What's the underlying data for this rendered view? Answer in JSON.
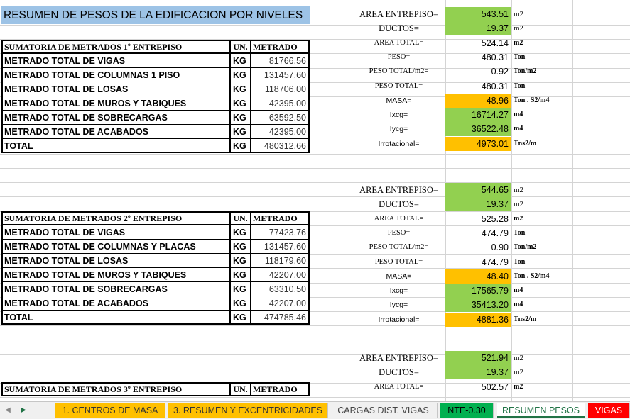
{
  "title": "RESUMEN DE PESOS DE LA EDIFICACION POR NIVELES",
  "header_labels": {
    "un": "UN.",
    "metrado": "METRADO"
  },
  "blocks": [
    {
      "header": "SUMATORIA  DE METRADOS 1º ENTREPISO",
      "rows": [
        {
          "label": "METRADO TOTAL DE VIGAS",
          "unit": "KG",
          "value": "81766.56"
        },
        {
          "label": "METRADO TOTAL DE COLUMNAS  1 PISO",
          "unit": "KG",
          "value": "131457.60"
        },
        {
          "label": "METRADO TOTAL DE LOSAS",
          "unit": "KG",
          "value": "118706.00"
        },
        {
          "label": "METRADO TOTAL DE MUROS Y TABIQUES",
          "unit": "KG",
          "value": "42395.00"
        },
        {
          "label": "METRADO TOTAL DE SOBRECARGAS",
          "unit": "KG",
          "value": "63592.50"
        },
        {
          "label": "METRADO TOTAL DE ACABADOS",
          "unit": "KG",
          "value": "42395.00"
        },
        {
          "label": "TOTAL",
          "unit": "KG",
          "value": "480312.66"
        }
      ]
    },
    {
      "header": "SUMATORIA  DE METRADOS 2º ENTREPISO",
      "rows": [
        {
          "label": "METRADO TOTAL DE VIGAS",
          "unit": "KG",
          "value": "77423.76"
        },
        {
          "label": "METRADO TOTAL DE COLUMNAS Y PLACAS",
          "unit": "KG",
          "value": "131457.60"
        },
        {
          "label": "METRADO TOTAL DE LOSAS",
          "unit": "KG",
          "value": "118179.60"
        },
        {
          "label": "METRADO TOTAL DE MUROS Y TABIQUES",
          "unit": "KG",
          "value": "42207.00"
        },
        {
          "label": "METRADO TOTAL DE SOBRECARGAS",
          "unit": "KG",
          "value": "63310.50"
        },
        {
          "label": "METRADO TOTAL DE ACABADOS",
          "unit": "KG",
          "value": "42207.00"
        },
        {
          "label": "TOTAL",
          "unit": "KG",
          "value": "474785.46"
        }
      ]
    },
    {
      "header": "SUMATORIA  DE METRADOS 3º ENTREPISO",
      "rows": []
    }
  ],
  "props": [
    [
      {
        "label": "AREA ENTREPISO=",
        "value": "543.51",
        "unit": "m2",
        "fill": "green",
        "style": "big"
      },
      {
        "label": "DUCTOS=",
        "value": "19.37",
        "unit": "m2",
        "fill": "green",
        "style": "big"
      },
      {
        "label": "AREA TOTAL=",
        "value": "524.14",
        "unit": "m2",
        "fill": "",
        "style": "small"
      },
      {
        "label": "PESO=",
        "value": "480.31",
        "unit": "Ton",
        "fill": "",
        "style": "small"
      },
      {
        "label": "PESO TOTAL/m2=",
        "value": "0.92",
        "unit": "Ton/m2",
        "fill": "",
        "style": "small"
      },
      {
        "label": "PESO TOTAL=",
        "value": "480.31",
        "unit": "Ton",
        "fill": "",
        "style": "small"
      },
      {
        "label": "MASA=",
        "value": "48.96",
        "unit": "Ton . S2/m4",
        "fill": "orange",
        "style": "sans"
      },
      {
        "label": "Ixcg=",
        "value": "16714.27",
        "unit": "m4",
        "fill": "green",
        "style": "sans"
      },
      {
        "label": "Iycg=",
        "value": "36522.48",
        "unit": "m4",
        "fill": "green",
        "style": "sans"
      },
      {
        "label": "Irrotacional=",
        "value": "4973.01",
        "unit": "Tns2/m",
        "fill": "orange",
        "style": "sans"
      }
    ],
    [
      {
        "label": "AREA ENTREPISO=",
        "value": "544.65",
        "unit": "m2",
        "fill": "green",
        "style": "big"
      },
      {
        "label": "DUCTOS=",
        "value": "19.37",
        "unit": "m2",
        "fill": "green",
        "style": "big"
      },
      {
        "label": "AREA TOTAL=",
        "value": "525.28",
        "unit": "m2",
        "fill": "",
        "style": "small"
      },
      {
        "label": "PESO=",
        "value": "474.79",
        "unit": "Ton",
        "fill": "",
        "style": "small"
      },
      {
        "label": "PESO TOTAL/m2=",
        "value": "0.90",
        "unit": "Ton/m2",
        "fill": "",
        "style": "small"
      },
      {
        "label": "PESO TOTAL=",
        "value": "474.79",
        "unit": "Ton",
        "fill": "",
        "style": "small"
      },
      {
        "label": "MASA=",
        "value": "48.40",
        "unit": "Ton . S2/m4",
        "fill": "orange",
        "style": "sans"
      },
      {
        "label": "Ixcg=",
        "value": "17565.79",
        "unit": "m4",
        "fill": "green",
        "style": "sans"
      },
      {
        "label": "Iycg=",
        "value": "35413.20",
        "unit": "m4",
        "fill": "green",
        "style": "sans"
      },
      {
        "label": "Irrotacional=",
        "value": "4881.36",
        "unit": "Tns2/m",
        "fill": "orange",
        "style": "sans"
      }
    ],
    [
      {
        "label": "AREA ENTREPISO=",
        "value": "521.94",
        "unit": "m2",
        "fill": "green",
        "style": "big"
      },
      {
        "label": "DUCTOS=",
        "value": "19.37",
        "unit": "m2",
        "fill": "green",
        "style": "big"
      },
      {
        "label": "AREA TOTAL=",
        "value": "502.57",
        "unit": "m2",
        "fill": "",
        "style": "small"
      }
    ]
  ],
  "colors": {
    "green": "#92d050",
    "orange": "#ffc000",
    "title_blue": "#9dc3e6"
  },
  "tabs": [
    {
      "label": "1. CENTROS DE MASA",
      "bg": "#ffc000",
      "color": "#333333",
      "active": false
    },
    {
      "label": "3. RESUMEN Y EXCENTRICIDADES",
      "bg": "#ffc000",
      "color": "#333333",
      "active": false
    },
    {
      "label": "CARGAS DIST. VIGAS",
      "bg": "#f0f0f0",
      "color": "#444444",
      "active": false
    },
    {
      "label": "NTE-0.30",
      "bg": "#00b050",
      "color": "#000000",
      "active": false
    },
    {
      "label": "RESUMEN PESOS",
      "bg": "#ffffff",
      "color": "#217346",
      "active": true
    },
    {
      "label": "VIGAS",
      "bg": "#ff0000",
      "color": "#ffffff",
      "active": false
    }
  ],
  "nav": {
    "prev_icon": "chevron-left-icon",
    "next_icon": "chevron-right-icon"
  }
}
